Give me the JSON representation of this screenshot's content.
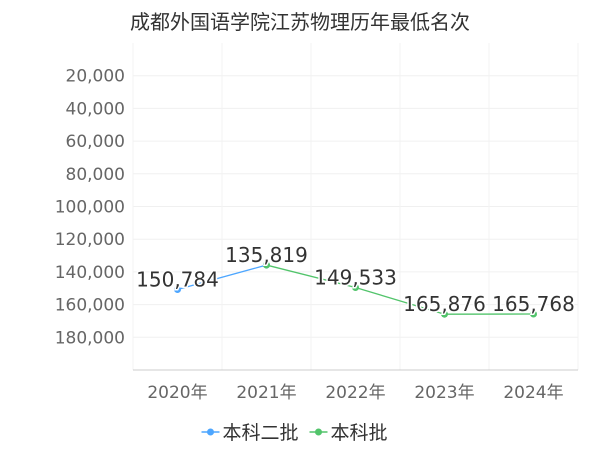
{
  "chart_data": {
    "type": "line",
    "title": "成都外国语学院江苏物理历年最低名次",
    "xlabel": "",
    "ylabel": "",
    "y_reversed": true,
    "ylim": [
      0,
      200000
    ],
    "grid": true,
    "legend_position": "bottom",
    "categories": [
      "2020年",
      "2021年",
      "2022年",
      "2023年",
      "2024年"
    ],
    "y_ticks": [
      {
        "value": 20000,
        "label": "20,000"
      },
      {
        "value": 40000,
        "label": "40,000"
      },
      {
        "value": 60000,
        "label": "60,000"
      },
      {
        "value": 80000,
        "label": "80,000"
      },
      {
        "value": 100000,
        "label": "100,000"
      },
      {
        "value": 120000,
        "label": "120,000"
      },
      {
        "value": 140000,
        "label": "140,000"
      },
      {
        "value": 160000,
        "label": "160,000"
      },
      {
        "value": 180000,
        "label": "180,000"
      }
    ],
    "series": [
      {
        "name": "本科二批",
        "color": "#4da6ff",
        "values": [
          150784,
          135819,
          null,
          null,
          null
        ]
      },
      {
        "name": "本科批",
        "color": "#52c46b",
        "values": [
          null,
          135819,
          149533,
          165876,
          165768
        ]
      }
    ],
    "data_labels": [
      {
        "category": "2020年",
        "value": 150784,
        "text": "150,784"
      },
      {
        "category": "2021年",
        "value": 135819,
        "text": "135,819"
      },
      {
        "category": "2022年",
        "value": 149533,
        "text": "149,533"
      },
      {
        "category": "2023年",
        "value": 165876,
        "text": "165,876"
      },
      {
        "category": "2024年",
        "value": 165768,
        "text": "165,768"
      }
    ]
  }
}
